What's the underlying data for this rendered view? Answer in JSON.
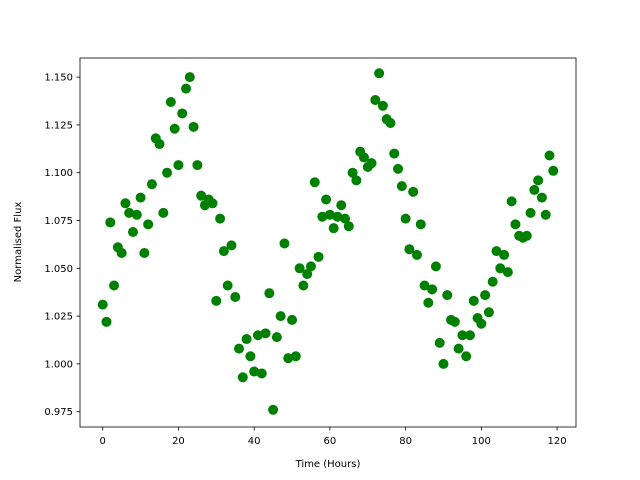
{
  "chart_data": {
    "type": "scatter",
    "x_label": "Time (Hours)",
    "y_label": "Normalised Flux",
    "color": "#008000",
    "xlim": [
      -6,
      125
    ],
    "ylim": [
      0.967,
      1.16
    ],
    "xticks": [
      0,
      20,
      40,
      60,
      80,
      100,
      120
    ],
    "yticks": [
      0.975,
      {
        "value": 1.0,
        "label": "1.000"
      },
      1.025,
      {
        "value": 1.05,
        "label": "1.050"
      },
      1.075,
      {
        "value": 1.1,
        "label": "1.100"
      },
      1.125,
      {
        "value": 1.15,
        "label": "1.150"
      }
    ],
    "grid": false,
    "x": [
      0,
      1,
      2,
      3,
      4,
      5,
      6,
      7,
      8,
      9,
      10,
      11,
      12,
      13,
      14,
      15,
      16,
      17,
      18,
      19,
      20,
      21,
      22,
      23,
      24,
      25,
      26,
      27,
      28,
      29,
      30,
      31,
      32,
      33,
      34,
      35,
      36,
      37,
      38,
      39,
      40,
      41,
      42,
      43,
      44,
      45,
      46,
      47,
      48,
      49,
      50,
      51,
      52,
      53,
      54,
      55,
      56,
      57,
      58,
      59,
      60,
      61,
      62,
      63,
      64,
      65,
      66,
      67,
      68,
      69,
      70,
      71,
      72,
      73,
      74,
      75,
      76,
      77,
      78,
      79,
      80,
      81,
      82,
      83,
      84,
      85,
      86,
      87,
      88,
      89,
      90,
      91,
      92,
      93,
      94,
      95,
      96,
      97,
      98,
      99,
      100,
      101,
      102,
      103,
      104,
      105,
      106,
      107,
      108,
      109,
      110,
      111,
      112,
      113,
      114,
      115,
      116,
      117,
      118,
      119
    ],
    "values": [
      1.031,
      1.022,
      1.074,
      1.041,
      1.061,
      1.058,
      1.084,
      1.079,
      1.069,
      1.078,
      1.087,
      1.058,
      1.073,
      1.094,
      1.118,
      1.115,
      1.079,
      1.1,
      1.137,
      1.123,
      1.104,
      1.131,
      1.144,
      1.15,
      1.124,
      1.104,
      1.088,
      1.083,
      1.086,
      1.084,
      1.033,
      1.076,
      1.059,
      1.041,
      1.062,
      1.035,
      1.008,
      0.993,
      1.013,
      1.004,
      0.996,
      1.015,
      0.995,
      1.016,
      1.037,
      0.976,
      1.014,
      1.025,
      1.063,
      1.003,
      1.023,
      1.004,
      1.05,
      1.041,
      1.047,
      1.051,
      1.095,
      1.056,
      1.077,
      1.086,
      1.078,
      1.071,
      1.077,
      1.083,
      1.076,
      1.072,
      1.1,
      1.096,
      1.111,
      1.108,
      1.103,
      1.105,
      1.138,
      1.152,
      1.135,
      1.128,
      1.126,
      1.11,
      1.102,
      1.093,
      1.076,
      1.06,
      1.09,
      1.057,
      1.073,
      1.041,
      1.032,
      1.039,
      1.051,
      1.011,
      1.0,
      1.036,
      1.023,
      1.022,
      1.008,
      1.015,
      1.004,
      1.015,
      1.033,
      1.024,
      1.021,
      1.036,
      1.027,
      1.043,
      1.059,
      1.05,
      1.057,
      1.048,
      1.085,
      1.073,
      1.067,
      1.066,
      1.067,
      1.079,
      1.091,
      1.096,
      1.087,
      1.078,
      1.109,
      1.101
    ]
  }
}
